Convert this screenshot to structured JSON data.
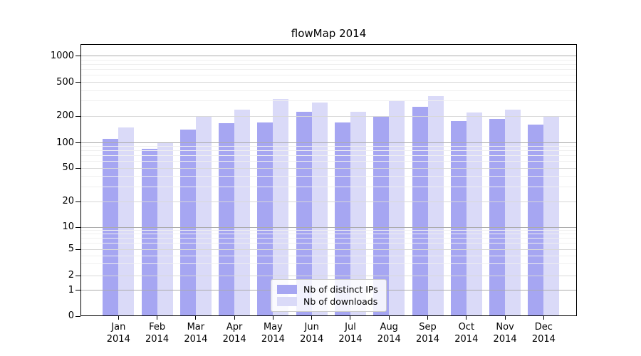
{
  "chart_data": {
    "type": "bar",
    "title": "flowMap 2014",
    "categories": [
      "Jan",
      "Feb",
      "Mar",
      "Apr",
      "May",
      "Jun",
      "Jul",
      "Aug",
      "Sep",
      "Oct",
      "Nov",
      "Dec"
    ],
    "year": "2014",
    "series": [
      {
        "name": "Nb of distinct IPs",
        "color": "#a6a6f2",
        "values": [
          110,
          85,
          140,
          165,
          170,
          225,
          170,
          200,
          255,
          175,
          185,
          160
        ]
      },
      {
        "name": "Nb of downloads",
        "color": "#dadaf8",
        "values": [
          150,
          100,
          200,
          240,
          315,
          290,
          225,
          305,
          340,
          220,
          240,
          200
        ]
      }
    ],
    "y_ticks": [
      0,
      1,
      2,
      5,
      10,
      20,
      50,
      100,
      200,
      500,
      1000
    ],
    "y_minor_ticks": [
      3,
      4,
      6,
      7,
      8,
      9,
      30,
      40,
      60,
      70,
      80,
      90,
      300,
      400,
      600,
      700,
      800,
      900
    ],
    "y_scale": "symlog",
    "ylim": [
      0,
      1000
    ],
    "grid": true,
    "legend_position": "lower center"
  }
}
